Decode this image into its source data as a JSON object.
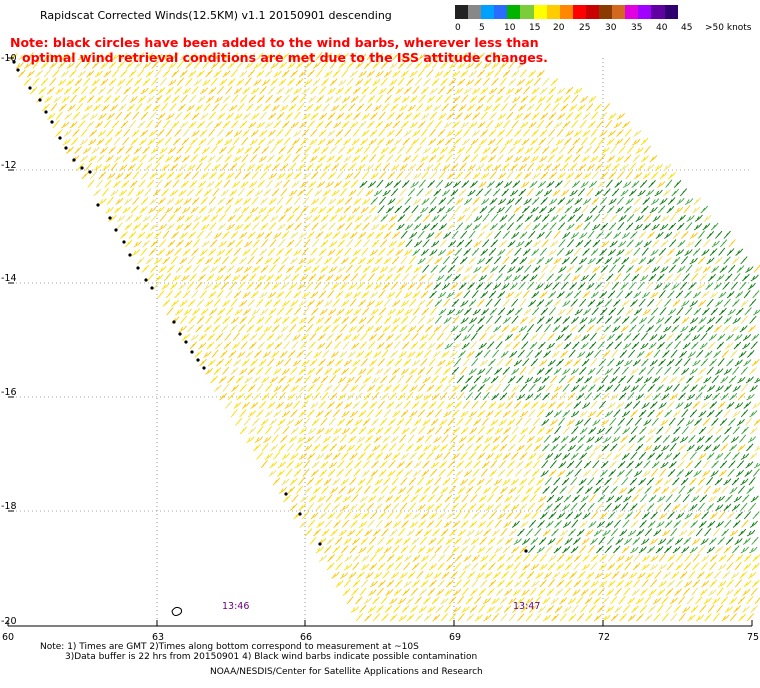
{
  "title": "Rapidscat Corrected Winds(12.5KM) v1.1 20150901 descending",
  "note": {
    "line1": "Note: black circles have been added to the wind barbs, wherever less than",
    "line2": "optimal wind retrieval conditions are met due to the ISS attitude changes."
  },
  "colorbar": {
    "colors": [
      "#222222",
      "#888888",
      "#00a0ff",
      "#2a6cff",
      "#00b400",
      "#7ccd3c",
      "#ffff00",
      "#ffcc00",
      "#ff8800",
      "#ff0000",
      "#c80000",
      "#8b3a00",
      "#d2691e",
      "#e000e0",
      "#a000ff",
      "#6000a0",
      "#300070"
    ],
    "labels": [
      "0",
      "5",
      "10",
      "15",
      "20",
      "25",
      "30",
      "35",
      "40",
      "45",
      ">50 knots"
    ]
  },
  "axes": {
    "lon_ticks": [
      "60",
      "63",
      "66",
      "69",
      "72",
      "75"
    ],
    "lat_ticks": [
      "-10",
      "-12",
      "-14",
      "-16",
      "-18",
      "-20"
    ]
  },
  "pass_times": [
    "13:46",
    "13:47"
  ],
  "footer": {
    "line1": "Note: 1) Times are GMT 2)Times along bottom correspond to measurement at ~10S",
    "line2": "3)Data buffer is 22 hrs from 20150901 4) Black wind barbs indicate possible contamination",
    "line3": "NOAA/NESDIS/Center for Satellite Applications and Research"
  }
}
